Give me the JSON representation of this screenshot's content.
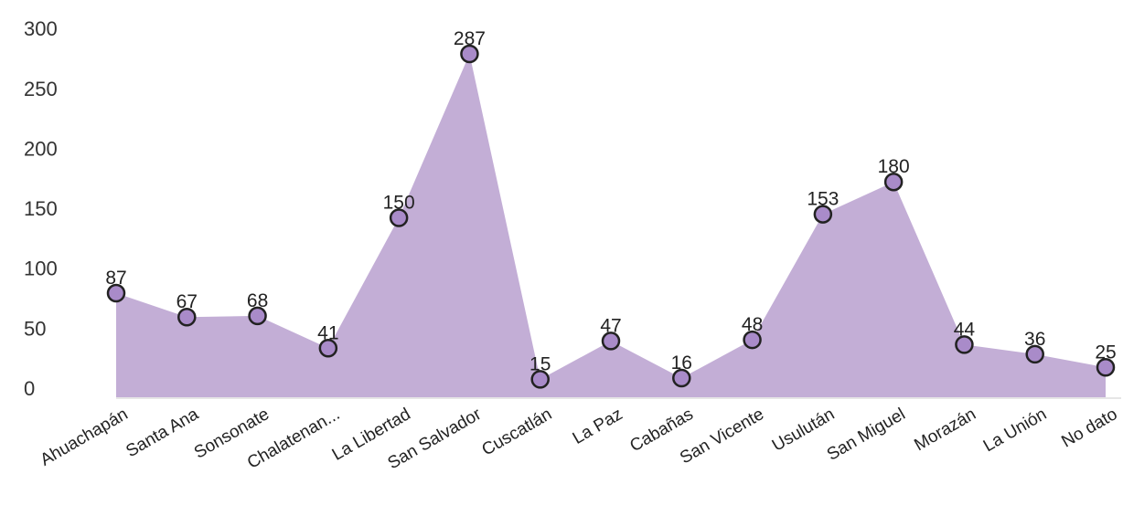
{
  "chart_data": {
    "type": "area",
    "title": "",
    "xlabel": "",
    "ylabel": "",
    "ylim": [
      0,
      300
    ],
    "yticks": [
      0,
      50,
      100,
      150,
      200,
      250,
      300
    ],
    "grid": false,
    "legend": "none",
    "categories": [
      "Ahuachapán",
      "Santa Ana",
      "Sonsonate",
      "Chalatenan...",
      "La Libertad",
      "San Salvador",
      "Cuscatlán",
      "La Paz",
      "Cabañas",
      "San Vicente",
      "Usulután",
      "San Miguel",
      "Morazán",
      "La Unión",
      "No dato"
    ],
    "values": [
      87,
      67,
      68,
      41,
      150,
      287,
      15,
      47,
      16,
      48,
      153,
      180,
      44,
      36,
      25
    ],
    "colors": {
      "fill": "#c3aed6",
      "marker_fill": "#a98bc9",
      "marker_stroke": "#222222",
      "axis": "#e6e6e6"
    }
  }
}
